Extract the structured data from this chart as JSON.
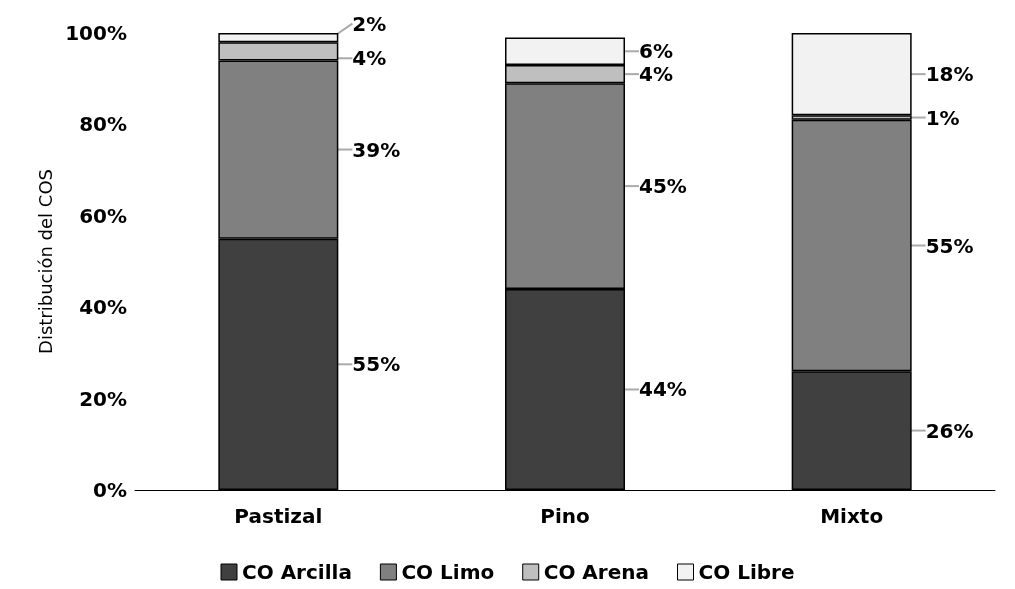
{
  "chart_data": {
    "type": "bar",
    "stacked": true,
    "ylabel": "Distribución del COS",
    "categories": [
      "Pastizal",
      "Pino",
      "Mixto"
    ],
    "series": [
      {
        "name": "CO Arcilla",
        "color": "#404040",
        "values": [
          55,
          44,
          26
        ],
        "value_labels": [
          "55%",
          "44%",
          "26%"
        ]
      },
      {
        "name": "CO Limo",
        "color": "#808080",
        "values": [
          39,
          45,
          55
        ],
        "value_labels": [
          "39%",
          "45%",
          "55%"
        ]
      },
      {
        "name": "CO Arena",
        "color": "#bfbfbf",
        "values": [
          4,
          4,
          1
        ],
        "value_labels": [
          "4%",
          "4%",
          "1%"
        ]
      },
      {
        "name": "CO Libre",
        "color": "#f2f2f2",
        "values": [
          2,
          6,
          18
        ],
        "value_labels": [
          "2%",
          "6%",
          "18%"
        ]
      }
    ],
    "ylim": [
      0,
      100
    ],
    "yticks": [
      {
        "value": 0,
        "label": "0%"
      },
      {
        "value": 20,
        "label": "20%"
      },
      {
        "value": 40,
        "label": "40%"
      },
      {
        "value": 60,
        "label": "60%"
      },
      {
        "value": 80,
        "label": "80%"
      },
      {
        "value": 100,
        "label": "100%"
      }
    ],
    "grid": false,
    "legend": "bottom"
  }
}
